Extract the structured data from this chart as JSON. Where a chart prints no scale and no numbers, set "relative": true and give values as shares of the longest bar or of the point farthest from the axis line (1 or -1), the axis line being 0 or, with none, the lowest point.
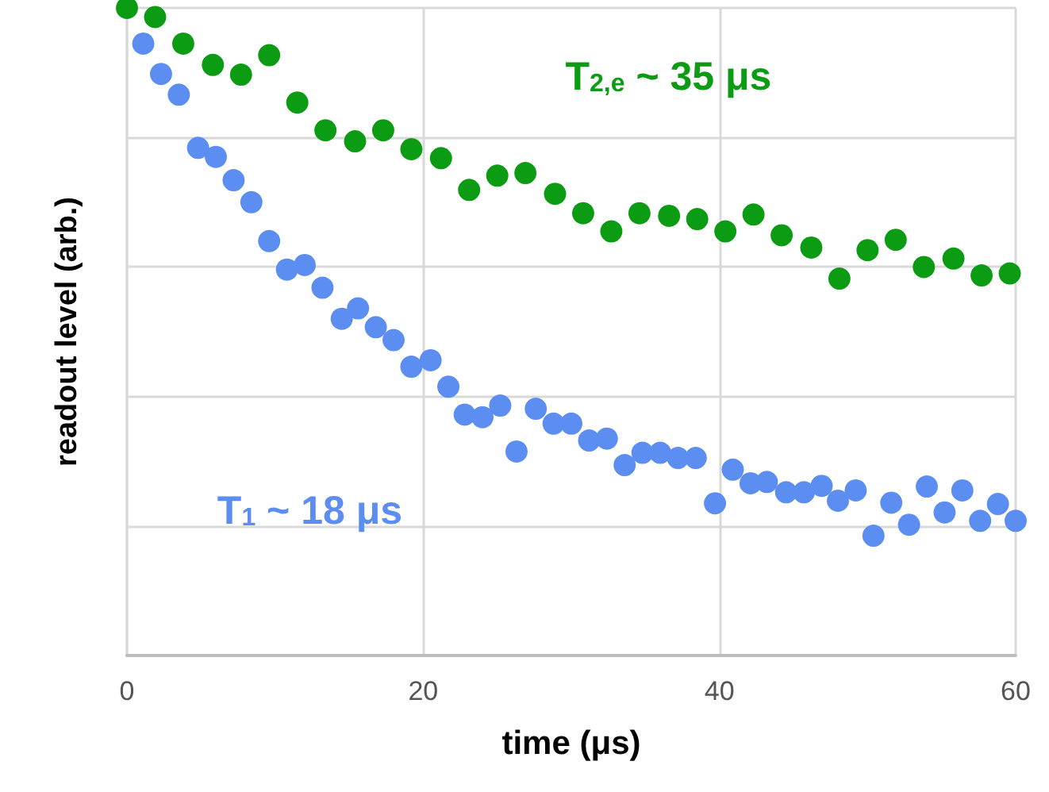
{
  "chart_data": {
    "type": "scatter",
    "relative": true,
    "xlabel": "time (μs)",
    "ylabel": "readout level (arb.)",
    "xlim": [
      0,
      60
    ],
    "xticks": [
      0,
      20,
      40,
      60
    ],
    "grid": true,
    "marker": "circle",
    "legend": false,
    "series": [
      {
        "name": "T$_{2,e}$ ~ 35 μs",
        "color": "#0b9c14",
        "x": [
          0,
          1.9,
          3.8,
          5.8,
          7.7,
          9.6,
          11.5,
          13.4,
          15.4,
          17.3,
          19.2,
          21.2,
          23.1,
          25.0,
          26.9,
          28.9,
          30.8,
          32.7,
          34.6,
          36.6,
          38.5,
          40.4,
          42.3,
          44.2,
          46.2,
          48.1,
          50.0,
          51.9,
          53.8,
          55.8,
          57.7,
          59.6
        ],
        "values": [
          1.0,
          0.986,
          0.945,
          0.912,
          0.897,
          0.927,
          0.854,
          0.811,
          0.794,
          0.811,
          0.782,
          0.768,
          0.719,
          0.741,
          0.745,
          0.713,
          0.683,
          0.655,
          0.683,
          0.679,
          0.674,
          0.655,
          0.681,
          0.649,
          0.63,
          0.582,
          0.626,
          0.642,
          0.6,
          0.613,
          0.587,
          0.59
        ]
      },
      {
        "name": "T$_{1}$ ~ 18 μs",
        "color": "#5b8ef0",
        "x": [
          1.1,
          2.3,
          3.5,
          4.8,
          6.0,
          7.2,
          8.4,
          9.6,
          10.8,
          12.0,
          13.2,
          14.5,
          15.6,
          16.8,
          18.0,
          19.2,
          20.5,
          21.7,
          22.8,
          24.0,
          25.2,
          26.3,
          27.6,
          28.8,
          30.0,
          31.2,
          32.4,
          33.6,
          34.8,
          36.0,
          37.2,
          38.4,
          39.7,
          40.9,
          42.1,
          43.2,
          44.5,
          45.7,
          46.9,
          48.0,
          49.2,
          50.4,
          51.6,
          52.8,
          54.0,
          55.2,
          56.4,
          57.6,
          58.8,
          60.0
        ],
        "values": [
          0.945,
          0.898,
          0.866,
          0.784,
          0.77,
          0.734,
          0.7,
          0.64,
          0.596,
          0.603,
          0.568,
          0.52,
          0.536,
          0.507,
          0.487,
          0.446,
          0.456,
          0.415,
          0.372,
          0.368,
          0.386,
          0.315,
          0.381,
          0.358,
          0.358,
          0.332,
          0.335,
          0.294,
          0.313,
          0.313,
          0.305,
          0.305,
          0.235,
          0.287,
          0.266,
          0.268,
          0.252,
          0.252,
          0.262,
          0.239,
          0.255,
          0.185,
          0.236,
          0.202,
          0.261,
          0.221,
          0.255,
          0.208,
          0.234,
          0.208
        ]
      }
    ]
  }
}
